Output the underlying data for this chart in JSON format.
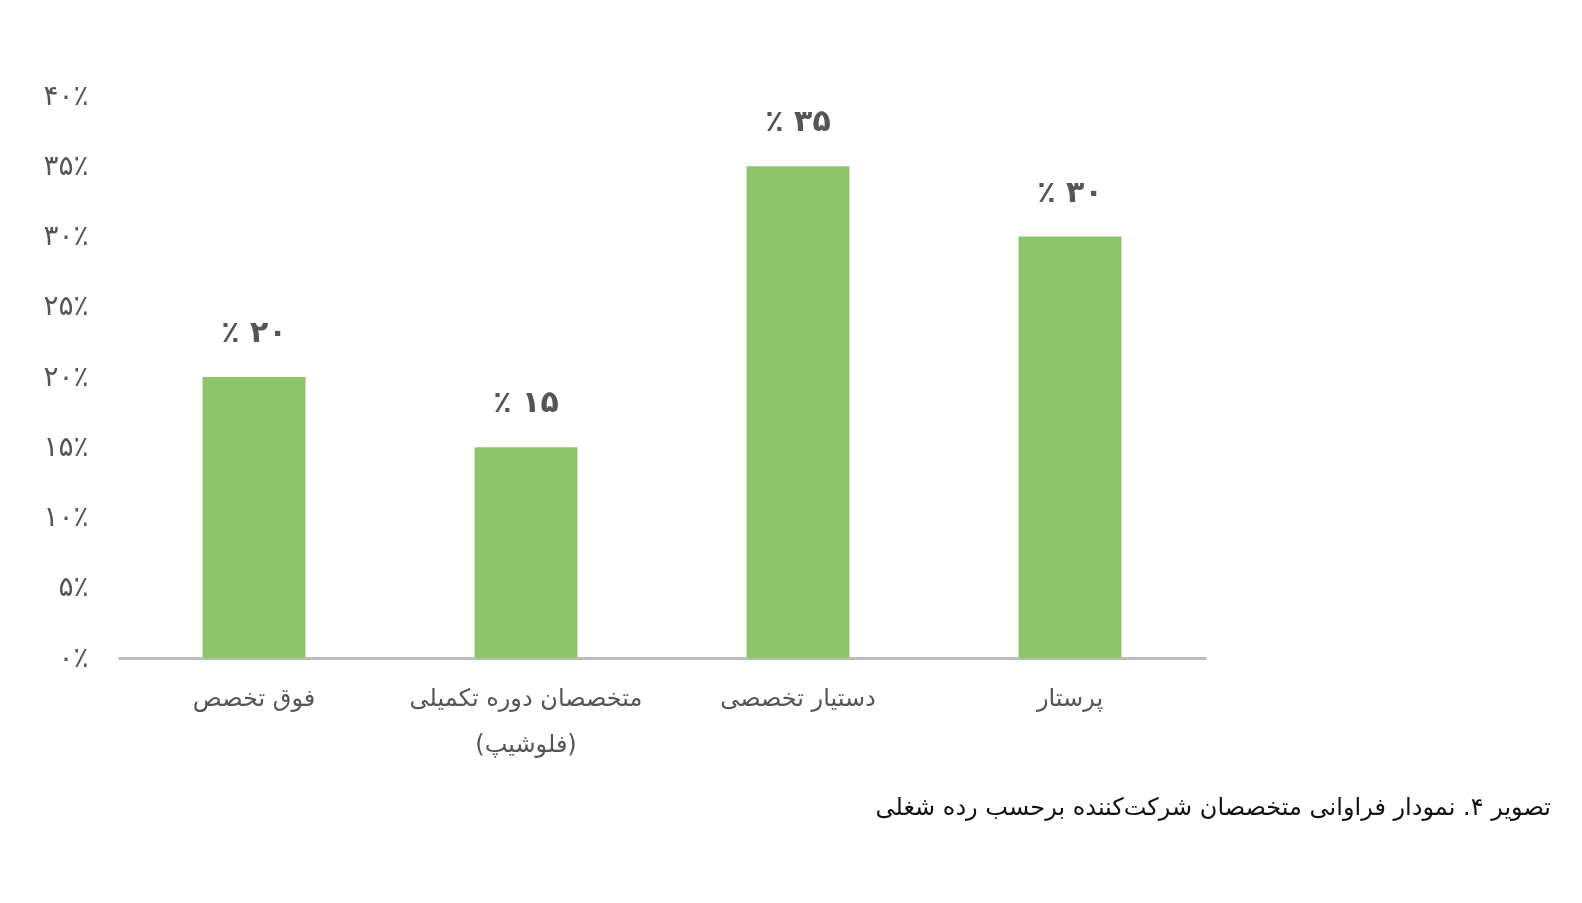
{
  "chart_data": {
    "type": "bar",
    "categories": [
      "فوق تخصص",
      "متخصصان دوره تکمیلی (فلوشیپ)",
      "دستیار تخصصی",
      "پرستار"
    ],
    "values": [
      20,
      15,
      35,
      30
    ],
    "value_labels": [
      "٪ ۲۰",
      "٪ ۱۵",
      "٪ ۳۵",
      "٪ ۳۰"
    ],
    "color": "#8cc56a",
    "ylim": [
      0,
      40
    ],
    "yticks": [
      {
        "value": 0,
        "label": "۰٪"
      },
      {
        "value": 5,
        "label": "۵٪"
      },
      {
        "value": 10,
        "label": "۱۰٪"
      },
      {
        "value": 15,
        "label": "۱۵٪"
      },
      {
        "value": 20,
        "label": "۲۰٪"
      },
      {
        "value": 25,
        "label": "۲۵٪"
      },
      {
        "value": 30,
        "label": "۳۰٪"
      },
      {
        "value": 35,
        "label": "۳۵٪"
      },
      {
        "value": 40,
        "label": "۴۰٪"
      }
    ],
    "grid": false,
    "annotations": [
      "تصویر ۴. نمودار فراوانی متخصصان شرکت‌کننده برحسب رده شغلی"
    ]
  }
}
